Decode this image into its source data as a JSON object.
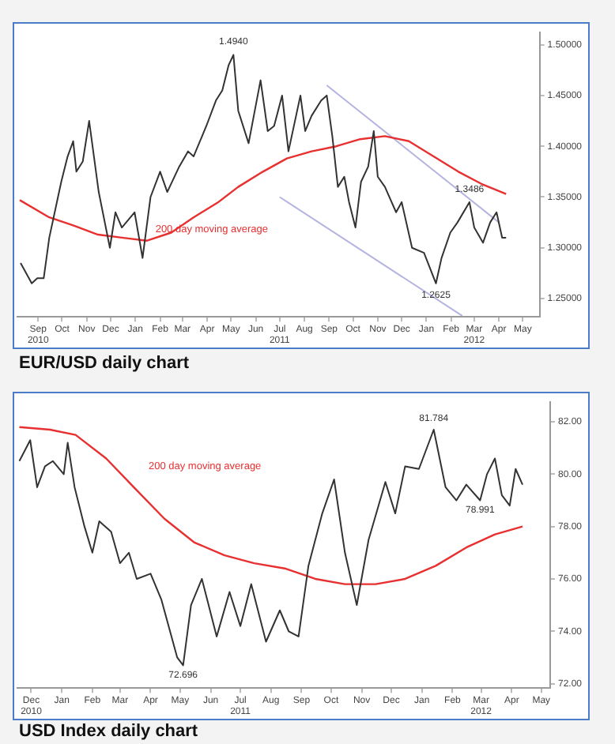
{
  "chart_data": [
    {
      "type": "line",
      "title": "EUR/USD daily chart",
      "legend": false,
      "grid": false,
      "marker": "none",
      "xlim": [
        "2010-08-06",
        "2012-05-22"
      ],
      "ylim": [
        1.232,
        1.512
      ],
      "yticks": [
        {
          "value": 1.25,
          "label": "1.25000"
        },
        {
          "value": 1.3,
          "label": "1.30000"
        },
        {
          "value": 1.35,
          "label": "1.35000"
        },
        {
          "value": 1.4,
          "label": "1.40000"
        },
        {
          "value": 1.45,
          "label": "1.45000"
        },
        {
          "value": 1.5,
          "label": "1.50000"
        }
      ],
      "xticks": [
        {
          "value": "2010-09-01",
          "label": "Sep\n2010"
        },
        {
          "value": "2010-10-01",
          "label": "Oct"
        },
        {
          "value": "2010-11-01",
          "label": "Nov"
        },
        {
          "value": "2010-12-01",
          "label": "Dec"
        },
        {
          "value": "2011-01-01",
          "label": "Jan"
        },
        {
          "value": "2011-02-01",
          "label": "Feb"
        },
        {
          "value": "2011-03-01",
          "label": "Mar"
        },
        {
          "value": "2011-04-01",
          "label": "Apr"
        },
        {
          "value": "2011-05-01",
          "label": "May"
        },
        {
          "value": "2011-06-01",
          "label": "Jun"
        },
        {
          "value": "2011-07-01",
          "label": "Jul\n2011"
        },
        {
          "value": "2011-08-01",
          "label": "Aug"
        },
        {
          "value": "2011-09-01",
          "label": "Sep"
        },
        {
          "value": "2011-10-01",
          "label": "Oct"
        },
        {
          "value": "2011-11-01",
          "label": "Nov"
        },
        {
          "value": "2011-12-01",
          "label": "Dec"
        },
        {
          "value": "2012-01-01",
          "label": "Jan"
        },
        {
          "value": "2012-02-01",
          "label": "Feb"
        },
        {
          "value": "2012-03-01",
          "label": "Mar\n2012"
        },
        {
          "value": "2012-04-01",
          "label": "Apr"
        },
        {
          "value": "2012-05-01",
          "label": "May"
        }
      ],
      "series": [
        {
          "color": "#333333",
          "x": [
            "2010-08-10",
            "2010-08-24",
            "2010-08-31",
            "2010-09-08",
            "2010-09-15",
            "2010-09-30",
            "2010-10-08",
            "2010-10-15",
            "2010-10-19",
            "2010-10-27",
            "2010-11-04",
            "2010-11-16",
            "2010-11-30",
            "2010-12-07",
            "2010-12-15",
            "2010-12-31",
            "2011-01-10",
            "2011-01-20",
            "2011-02-01",
            "2011-02-10",
            "2011-02-25",
            "2011-03-08",
            "2011-03-15",
            "2011-03-31",
            "2011-04-12",
            "2011-04-20",
            "2011-04-28",
            "2011-05-04",
            "2011-05-10",
            "2011-05-23",
            "2011-06-07",
            "2011-06-16",
            "2011-06-24",
            "2011-07-04",
            "2011-07-12",
            "2011-07-27",
            "2011-08-02",
            "2011-08-10",
            "2011-08-22",
            "2011-08-29",
            "2011-09-05",
            "2011-09-12",
            "2011-09-20",
            "2011-09-26",
            "2011-10-04",
            "2011-10-11",
            "2011-10-20",
            "2011-10-27",
            "2011-11-01",
            "2011-11-10",
            "2011-11-24",
            "2011-12-01",
            "2011-12-14",
            "2011-12-29",
            "2012-01-13",
            "2012-01-20",
            "2012-01-31",
            "2012-02-09",
            "2012-02-24",
            "2012-03-01",
            "2012-03-12",
            "2012-03-21",
            "2012-03-29",
            "2012-04-05",
            "2012-04-10"
          ],
          "values": [
            1.285,
            1.265,
            1.27,
            1.27,
            1.31,
            1.365,
            1.39,
            1.405,
            1.375,
            1.385,
            1.425,
            1.355,
            1.3,
            1.335,
            1.32,
            1.335,
            1.29,
            1.35,
            1.375,
            1.355,
            1.38,
            1.395,
            1.39,
            1.42,
            1.445,
            1.455,
            1.48,
            1.49,
            1.435,
            1.403,
            1.465,
            1.415,
            1.42,
            1.45,
            1.395,
            1.45,
            1.415,
            1.43,
            1.445,
            1.45,
            1.41,
            1.36,
            1.37,
            1.345,
            1.32,
            1.365,
            1.38,
            1.415,
            1.37,
            1.36,
            1.335,
            1.345,
            1.3,
            1.295,
            1.265,
            1.29,
            1.315,
            1.325,
            1.345,
            1.32,
            1.305,
            1.325,
            1.335,
            1.31,
            1.31
          ]
        },
        {
          "name": "200 day moving average",
          "color": "#e83030",
          "x": [
            "2010-08-09",
            "2010-09-15",
            "2010-10-15",
            "2010-11-15",
            "2010-12-15",
            "2011-01-15",
            "2011-02-15",
            "2011-03-15",
            "2011-04-15",
            "2011-05-10",
            "2011-06-10",
            "2011-07-10",
            "2011-08-10",
            "2011-09-10",
            "2011-10-10",
            "2011-11-10",
            "2011-12-10",
            "2012-01-10",
            "2012-02-10",
            "2012-03-10",
            "2012-04-10"
          ],
          "values": [
            1.347,
            1.33,
            1.322,
            1.313,
            1.31,
            1.307,
            1.315,
            1.33,
            1.345,
            1.36,
            1.375,
            1.388,
            1.395,
            1.4,
            1.407,
            1.41,
            1.405,
            1.39,
            1.375,
            1.363,
            1.353
          ]
        },
        {
          "color": "#b4b4e0",
          "x": [
            "2011-08-29",
            "2012-04-01"
          ],
          "values": [
            1.46,
            1.325
          ]
        },
        {
          "color": "#b4b4e0",
          "x": [
            "2011-07-01",
            "2012-02-15"
          ],
          "values": [
            1.35,
            1.233
          ]
        }
      ],
      "annotations": [
        {
          "text": "1.4940",
          "x": "2011-05-04",
          "y": 1.494
        },
        {
          "text": "1.3486",
          "x": "2012-02-24",
          "y": 1.3486
        },
        {
          "text": "1.2625",
          "x": "2012-01-13",
          "y": 1.2625
        }
      ]
    },
    {
      "type": "line",
      "title": "USD Index daily chart",
      "legend": false,
      "grid": false,
      "marker": "none",
      "xlim": [
        "2010-11-17",
        "2012-05-10"
      ],
      "ylim": [
        71.83,
        82.75
      ],
      "yticks": [
        {
          "value": 72,
          "label": "72.00"
        },
        {
          "value": 74,
          "label": "74.00"
        },
        {
          "value": 76,
          "label": "76.00"
        },
        {
          "value": 78,
          "label": "78.00"
        },
        {
          "value": 80,
          "label": "80.00"
        },
        {
          "value": 82,
          "label": "82.00"
        }
      ],
      "xticks": [
        {
          "value": "2010-12-01",
          "label": "Dec\n2010"
        },
        {
          "value": "2011-01-01",
          "label": "Jan"
        },
        {
          "value": "2011-02-01",
          "label": "Feb"
        },
        {
          "value": "2011-03-01",
          "label": "Mar"
        },
        {
          "value": "2011-04-01",
          "label": "Apr"
        },
        {
          "value": "2011-05-01",
          "label": "May"
        },
        {
          "value": "2011-06-01",
          "label": "Jun"
        },
        {
          "value": "2011-07-01",
          "label": "Jul\n2011"
        },
        {
          "value": "2011-08-01",
          "label": "Aug"
        },
        {
          "value": "2011-09-01",
          "label": "Sep"
        },
        {
          "value": "2011-10-01",
          "label": "Oct"
        },
        {
          "value": "2011-11-01",
          "label": "Nov"
        },
        {
          "value": "2011-12-01",
          "label": "Dec"
        },
        {
          "value": "2012-01-01",
          "label": "Jan"
        },
        {
          "value": "2012-02-01",
          "label": "Feb"
        },
        {
          "value": "2012-03-01",
          "label": "Mar\n2012"
        },
        {
          "value": "2012-04-01",
          "label": "Apr"
        },
        {
          "value": "2012-05-01",
          "label": "May"
        }
      ],
      "series": [
        {
          "color": "#333333",
          "x": [
            "2010-11-19",
            "2010-11-30",
            "2010-12-07",
            "2010-12-15",
            "2010-12-23",
            "2011-01-03",
            "2011-01-07",
            "2011-01-14",
            "2011-01-24",
            "2011-02-01",
            "2011-02-08",
            "2011-02-20",
            "2011-03-01",
            "2011-03-10",
            "2011-03-18",
            "2011-04-01",
            "2011-04-12",
            "2011-04-28",
            "2011-05-04",
            "2011-05-12",
            "2011-05-23",
            "2011-06-07",
            "2011-06-20",
            "2011-07-01",
            "2011-07-12",
            "2011-07-27",
            "2011-08-10",
            "2011-08-19",
            "2011-08-29",
            "2011-09-08",
            "2011-09-22",
            "2011-10-04",
            "2011-10-15",
            "2011-10-27",
            "2011-11-08",
            "2011-11-25",
            "2011-12-05",
            "2011-12-15",
            "2011-12-29",
            "2012-01-13",
            "2012-01-25",
            "2012-02-05",
            "2012-02-15",
            "2012-02-29",
            "2012-03-07",
            "2012-03-15",
            "2012-03-22",
            "2012-03-30",
            "2012-04-05",
            "2012-04-12"
          ],
          "values": [
            80.5,
            81.3,
            79.5,
            80.3,
            80.5,
            80.0,
            81.2,
            79.5,
            78.0,
            77.0,
            78.2,
            77.8,
            76.6,
            77.0,
            76.0,
            76.2,
            75.2,
            73.0,
            72.7,
            75.0,
            76.0,
            73.8,
            75.5,
            74.2,
            75.8,
            73.6,
            74.8,
            74.0,
            73.8,
            76.5,
            78.5,
            79.8,
            77.0,
            75.0,
            77.5,
            79.7,
            78.5,
            80.3,
            80.2,
            81.7,
            79.5,
            79.0,
            79.6,
            79.0,
            80.0,
            80.6,
            79.2,
            78.8,
            80.2,
            79.6
          ]
        },
        {
          "name": "200 day moving average",
          "color": "#e83030",
          "x": [
            "2010-11-19",
            "2010-12-20",
            "2011-01-15",
            "2011-02-15",
            "2011-03-15",
            "2011-04-15",
            "2011-05-15",
            "2011-06-15",
            "2011-07-15",
            "2011-08-15",
            "2011-09-15",
            "2011-10-15",
            "2011-11-15",
            "2011-12-15",
            "2012-01-15",
            "2012-02-15",
            "2012-03-15",
            "2012-04-12"
          ],
          "values": [
            81.8,
            81.7,
            81.5,
            80.6,
            79.5,
            78.3,
            77.4,
            76.9,
            76.6,
            76.4,
            76.0,
            75.8,
            75.8,
            76.0,
            76.5,
            77.2,
            77.7,
            78.0
          ]
        }
      ],
      "annotations": [
        {
          "text": "81.784",
          "x": "2012-01-13",
          "y": 81.784
        },
        {
          "text": "72.696",
          "x": "2011-05-04",
          "y": 72.696
        },
        {
          "text": "78.991",
          "x": "2012-02-29",
          "y": 78.991
        }
      ]
    }
  ]
}
